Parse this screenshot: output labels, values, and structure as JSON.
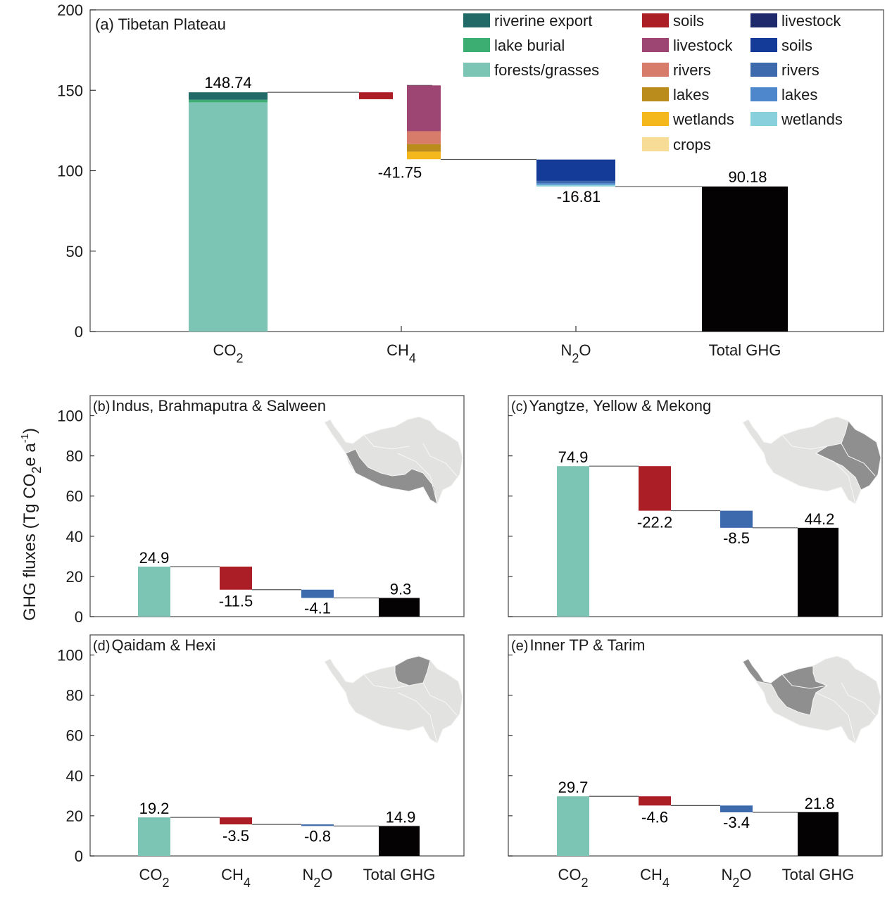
{
  "chart_data": [
    {
      "id": "a",
      "type": "bar",
      "subtype": "waterfall-stacked",
      "title": "(a) Tibetan Plateau",
      "categories": [
        "CO2",
        "CH4",
        "N2O",
        "Total GHG"
      ],
      "category_labels": [
        {
          "main": "CO",
          "sub": "2",
          "tail": ""
        },
        {
          "main": "CH",
          "sub": "4",
          "tail": ""
        },
        {
          "main": "N",
          "sub": "2",
          "tail": "O"
        },
        {
          "main": "Total GHG",
          "sub": "",
          "tail": ""
        }
      ],
      "ylim": [
        0,
        200
      ],
      "yticks": [
        0,
        50,
        100,
        150,
        200
      ],
      "grid": false,
      "value_labels": [
        "148.74",
        "-41.75",
        "-16.81",
        "90.18"
      ],
      "totals": {
        "CO2": 148.74,
        "CH4": -41.75,
        "N2O": -16.81,
        "Total GHG": 90.18
      },
      "components": {
        "CO2": [
          {
            "name": "forests/grasses",
            "value": 142.5,
            "color": "#7cc4b4"
          },
          {
            "name": "lake burial",
            "value": 1.6,
            "color": "#3cae72"
          },
          {
            "name": "riverine export",
            "value": 4.64,
            "color": "#226a68"
          }
        ],
        "CH4": [
          {
            "name": "soils",
            "value": 4.3,
            "color": "#ab1e25"
          },
          {
            "name": "livestock",
            "value": -28.5,
            "color": "#9e4673"
          },
          {
            "name": "rivers",
            "value": -8.0,
            "color": "#d77b6a"
          },
          {
            "name": "lakes",
            "value": -4.7,
            "color": "#b98c1c"
          },
          {
            "name": "wetlands",
            "value": -4.7,
            "color": "#f5b81c"
          },
          {
            "name": "crops",
            "value": -0.15,
            "color": "#f6dc96"
          }
        ],
        "N2O": [
          {
            "name": "livestock",
            "value": -0.11,
            "color": "#1f2a6c"
          },
          {
            "name": "soils",
            "value": -13.2,
            "color": "#143b97"
          },
          {
            "name": "rivers",
            "value": -1.5,
            "color": "#3d6aad"
          },
          {
            "name": "lakes",
            "value": -1.0,
            "color": "#4f87cc"
          },
          {
            "name": "wetlands",
            "value": -1.0,
            "color": "#88d0dc"
          }
        ],
        "Total GHG": [
          {
            "name": "total",
            "value": 90.18,
            "color": "#050203"
          }
        ]
      },
      "legend": {
        "placement": "top-right",
        "columns": [
          {
            "gas": "CO2",
            "entries": [
              {
                "label": "riverine export",
                "color": "#226a68"
              },
              {
                "label": "lake burial",
                "color": "#3cae72"
              },
              {
                "label": "forests/grasses",
                "color": "#7cc4b4"
              }
            ]
          },
          {
            "gas": "CH4",
            "entries": [
              {
                "label": "soils",
                "color": "#ab1e25"
              },
              {
                "label": "livestock",
                "color": "#9e4673"
              },
              {
                "label": "rivers",
                "color": "#d77b6a"
              },
              {
                "label": "lakes",
                "color": "#b98c1c"
              },
              {
                "label": "wetlands",
                "color": "#f5b81c"
              },
              {
                "label": "crops",
                "color": "#f6dc96"
              }
            ]
          },
          {
            "gas": "N2O",
            "entries": [
              {
                "label": "livestock",
                "color": "#1f2a6c"
              },
              {
                "label": "soils",
                "color": "#143b97"
              },
              {
                "label": "rivers",
                "color": "#3d6aad"
              },
              {
                "label": "lakes",
                "color": "#4f87cc"
              },
              {
                "label": "wetlands",
                "color": "#88d0dc"
              }
            ]
          }
        ]
      }
    },
    {
      "id": "b",
      "type": "bar",
      "subtype": "waterfall",
      "title_letter": "(b)",
      "title": "Indus, Brahmaputra & Salween",
      "categories": [
        "CO2",
        "CH4",
        "N2O",
        "Total GHG"
      ],
      "values": [
        24.9,
        -11.5,
        -4.1,
        9.3
      ],
      "value_labels": [
        "24.9",
        "-11.5",
        "-4.1",
        "9.3"
      ],
      "ylim": [
        0,
        110
      ],
      "yticks": [
        0,
        20,
        40,
        60,
        80,
        100
      ],
      "inset_map": "Tibetan Plateau basins map, highlighted: Indus, Brahmaputra & Salween (south-west/south)",
      "show_xlabels": false
    },
    {
      "id": "c",
      "type": "bar",
      "subtype": "waterfall",
      "title_letter": "(c)",
      "title": "Yangtze, Yellow & Mekong",
      "categories": [
        "CO2",
        "CH4",
        "N2O",
        "Total GHG"
      ],
      "values": [
        74.9,
        -22.2,
        -8.5,
        44.2
      ],
      "value_labels": [
        "74.9",
        "-22.2",
        "-8.5",
        "44.2"
      ],
      "ylim": [
        0,
        110
      ],
      "yticks": [
        0,
        20,
        40,
        60,
        80,
        100
      ],
      "inset_map": "Tibetan Plateau basins map, highlighted: Yangtze, Yellow & Mekong (east)",
      "show_xlabels": false
    },
    {
      "id": "d",
      "type": "bar",
      "subtype": "waterfall",
      "title_letter": "(d)",
      "title": "Qaidam & Hexi",
      "categories": [
        "CO2",
        "CH4",
        "N2O",
        "Total GHG"
      ],
      "values": [
        19.2,
        -3.5,
        -0.8,
        14.9
      ],
      "value_labels": [
        "19.2",
        "-3.5",
        "-0.8",
        "14.9"
      ],
      "ylim": [
        0,
        110
      ],
      "yticks": [
        0,
        20,
        40,
        60,
        80,
        100
      ],
      "inset_map": "Tibetan Plateau basins map, highlighted: Qaidam & Hexi (north-east)",
      "show_xlabels": true
    },
    {
      "id": "e",
      "type": "bar",
      "subtype": "waterfall",
      "title_letter": "(e)",
      "title": "Inner TP & Tarim",
      "categories": [
        "CO2",
        "CH4",
        "N2O",
        "Total GHG"
      ],
      "values": [
        29.7,
        -4.6,
        -3.4,
        21.8
      ],
      "value_labels": [
        "29.7",
        "-4.6",
        "-3.4",
        "21.8"
      ],
      "ylim": [
        0,
        110
      ],
      "yticks": [
        0,
        20,
        40,
        60,
        80,
        100
      ],
      "inset_map": "Tibetan Plateau basins map, highlighted: Inner TP & Tarim (north-west/center)",
      "show_xlabels": true
    }
  ],
  "shared": {
    "ylabel_main": "GHG fluxes (Tg CO",
    "ylabel_sub": "2",
    "ylabel_mid": "e a",
    "ylabel_sup": "-1",
    "ylabel_end": ")",
    "category_labels": [
      {
        "main": "CO",
        "sub": "2",
        "tail": ""
      },
      {
        "main": "CH",
        "sub": "4",
        "tail": ""
      },
      {
        "main": "N",
        "sub": "2",
        "tail": "O"
      },
      {
        "main": "Total GHG",
        "sub": "",
        "tail": ""
      }
    ],
    "colors": {
      "CO2": "#7cc4b4",
      "CH4": "#ab1e25",
      "N2O": "#3d6aad",
      "Total GHG": "#050203",
      "map_base": "#e2e2e0",
      "map_highlight": "#8f8f8f"
    }
  }
}
